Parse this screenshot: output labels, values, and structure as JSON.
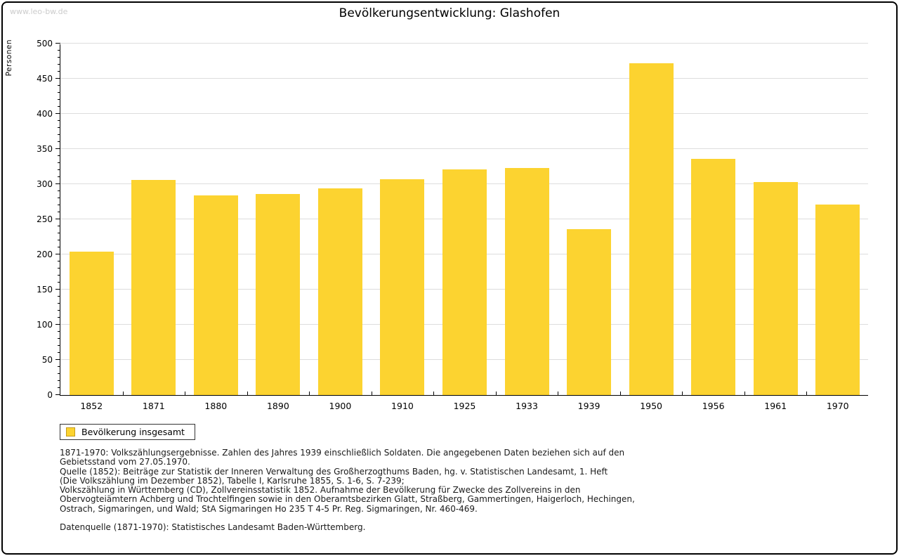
{
  "watermark": "www.leo-bw.de",
  "chart_data": {
    "type": "bar",
    "title": "Bevölkerungsentwicklung: Glashofen",
    "xlabel": "",
    "ylabel": "Personen",
    "ylim": [
      0,
      500
    ],
    "ytick_step": 50,
    "minor_tick_step": 10,
    "grid": true,
    "legend_position": "bottom-left",
    "categories": [
      "1852",
      "1871",
      "1880",
      "1890",
      "1900",
      "1910",
      "1925",
      "1933",
      "1939",
      "1950",
      "1956",
      "1961",
      "1970"
    ],
    "series": [
      {
        "name": "Bevölkerung insgesamt",
        "values": [
          204,
          306,
          284,
          286,
          294,
          307,
          321,
          323,
          236,
          472,
          336,
          303,
          271
        ]
      }
    ]
  },
  "colors": {
    "bar_fill": "#FCD330",
    "swatch_border": "#C49B1B",
    "gridline": "#DDDDDD",
    "axis": "#000000"
  },
  "footnotes": {
    "lines": [
      "1871-1970: Volkszählungsergebnisse. Zahlen des Jahres 1939 einschließlich Soldaten. Die angegebenen Daten beziehen sich auf den",
      "Gebietsstand vom 27.05.1970.",
      "Quelle (1852): Beiträge zur Statistik der Inneren Verwaltung des Großherzogthums Baden, hg. v. Statistischen Landesamt, 1. Heft",
      "(Die Volkszählung im Dezember 1852), Tabelle I, Karlsruhe 1855, S. 1-6, S. 7-239;",
      "Volkszählung in Württemberg (CD), Zollvereinsstatistik 1852. Aufnahme der Bevölkerung für Zwecke des Zollvereins in den",
      "Obervogteiämtern Achberg und Trochtelfingen sowie in den Oberamtsbezirken Glatt, Straßberg, Gammertingen, Haigerloch, Hechingen,",
      "Ostrach, Sigmaringen, und Wald; StA Sigmaringen Ho 235 T 4-5 Pr. Reg. Sigmaringen, Nr. 460-469."
    ],
    "source_line": "Datenquelle (1871-1970): Statistisches Landesamt Baden-Württemberg."
  }
}
